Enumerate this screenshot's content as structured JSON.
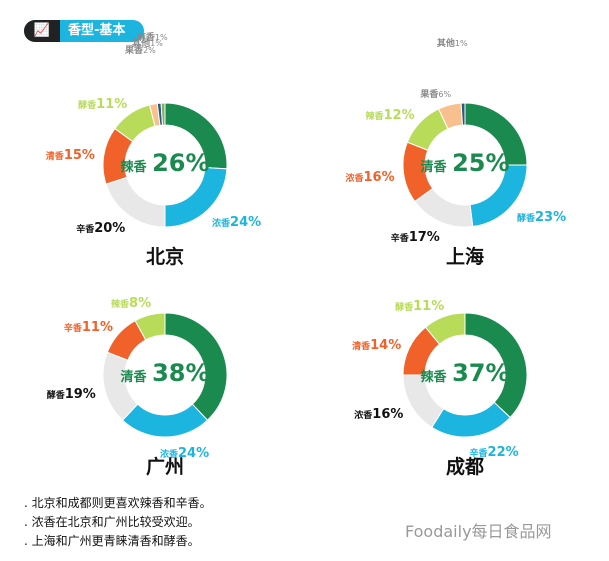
{
  "header": {
    "icon": "line-chart-icon",
    "title": "香型-基本"
  },
  "colors": {
    "辣香": "#1b8a4e",
    "清香": "#1b8a4e",
    "浓香": "#1cb5e0",
    "酵香": "#1cb5e0",
    "辛香": "#e8e8e8",
    "other_orange": "#f0622a",
    "other_lime": "#b8dc5a",
    "peach": "#f8c08e",
    "navy": "#2b5a7a",
    "tiny": "#7fb069"
  },
  "charts": [
    {
      "city": "北京",
      "segments": [
        {
          "name": "辣香",
          "value": 26,
          "color": "#1b8a4e"
        },
        {
          "name": "浓香",
          "value": 24,
          "color": "#1cb5e0"
        },
        {
          "name": "辛香",
          "value": 20,
          "color": "#e8e8e8"
        },
        {
          "name": "清香",
          "value": 15,
          "color": "#f0622a"
        },
        {
          "name": "酵香",
          "value": 11,
          "color": "#b8dc5a"
        },
        {
          "name": "果香",
          "value": 2,
          "color": "#f8c08e"
        },
        {
          "name": "其他",
          "value": 1,
          "color": "#2b5a7a"
        },
        {
          "name": "麻香",
          "value": 1,
          "color": "#7fb069"
        }
      ]
    },
    {
      "city": "上海",
      "segments": [
        {
          "name": "清香",
          "value": 25,
          "color": "#1b8a4e"
        },
        {
          "name": "酵香",
          "value": 23,
          "color": "#1cb5e0"
        },
        {
          "name": "辛香",
          "value": 17,
          "color": "#e8e8e8"
        },
        {
          "name": "浓香",
          "value": 16,
          "color": "#f0622a"
        },
        {
          "name": "辣香",
          "value": 12,
          "color": "#b8dc5a"
        },
        {
          "name": "果香",
          "value": 6,
          "color": "#f8c08e"
        },
        {
          "name": "其他",
          "value": 1,
          "color": "#2b5a7a"
        }
      ]
    },
    {
      "city": "广州",
      "segments": [
        {
          "name": "清香",
          "value": 38,
          "color": "#1b8a4e"
        },
        {
          "name": "浓香",
          "value": 24,
          "color": "#1cb5e0"
        },
        {
          "name": "酵香",
          "value": 19,
          "color": "#e8e8e8"
        },
        {
          "name": "辛香",
          "value": 11,
          "color": "#f0622a"
        },
        {
          "name": "辣香",
          "value": 8,
          "color": "#b8dc5a"
        }
      ]
    },
    {
      "city": "成都",
      "segments": [
        {
          "name": "辣香",
          "value": 37,
          "color": "#1b8a4e"
        },
        {
          "name": "辛香",
          "value": 22,
          "color": "#1cb5e0"
        },
        {
          "name": "浓香",
          "value": 16,
          "color": "#e8e8e8"
        },
        {
          "name": "清香",
          "value": 14,
          "color": "#f0622a"
        },
        {
          "name": "酵香",
          "value": 11,
          "color": "#b8dc5a"
        }
      ]
    }
  ],
  "notes": [
    "北京和成都则更喜欢辣香和辛香。",
    "浓香在北京和广州比较受欢迎。",
    "上海和广州更青睐清香和酵香。"
  ],
  "watermark": "Foodaily每日食品网"
}
